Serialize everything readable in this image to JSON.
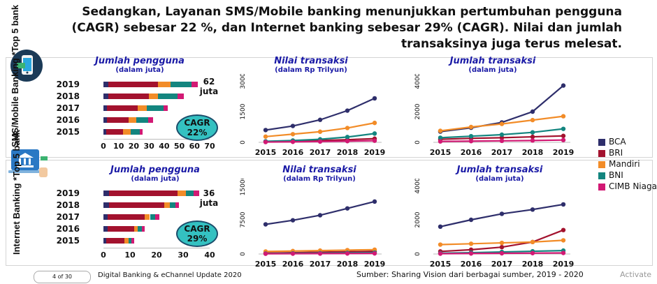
{
  "headline": "Sedangkan, Layanan SMS/Mobile banking menunjukkan pertumbuhan pengguna (CAGR) sebesar 22 %, dan Internet banking sebesar 29% (CAGR). Nilai dan jumlah transaksinya juga terus melesat.",
  "side_labels": {
    "mobile": "SMS/Mobile Banking *Top 5 bank",
    "internet": "Internet Banking *Top 5 bank"
  },
  "icons": {
    "mobile": "smartphone-icon",
    "internet": "bank-laptop-icon"
  },
  "colors": {
    "BCA": "#2e2e6b",
    "BRI": "#a3122e",
    "Mandiri": "#f28c28",
    "BNI": "#13857f",
    "CIMB Niaga": "#d21974"
  },
  "legend": [
    "BCA",
    "BRI",
    "Mandiri",
    "BNI",
    "CIMB Niaga"
  ],
  "footer": {
    "page": "4 of 30",
    "title": "Digital Banking & eChannel Update 2020",
    "source": "Sumber: Sharing Vision dari berbagai sumber, 2019 - 2020",
    "watermark": "Activate"
  },
  "chart_data": [
    {
      "id": "mobile-users",
      "type": "bar",
      "orientation": "horizontal",
      "stacked": true,
      "title": "Jumlah pengguna",
      "subtitle": "(dalam juta)",
      "categories": [
        "2019",
        "2018",
        "2017",
        "2016",
        "2015"
      ],
      "series": [
        {
          "name": "BCA",
          "values": [
            3,
            3,
            2.5,
            2.5,
            2
          ]
        },
        {
          "name": "BRI",
          "values": [
            33,
            27,
            20,
            14,
            11
          ]
        },
        {
          "name": "Mandiri",
          "values": [
            8,
            6,
            6,
            5,
            5
          ]
        },
        {
          "name": "BNI",
          "values": [
            14,
            13,
            11,
            8,
            6
          ]
        },
        {
          "name": "CIMB Niaga",
          "values": [
            4,
            4,
            3,
            3,
            2
          ]
        }
      ],
      "xticks": [
        "0",
        "10",
        "20",
        "30",
        "40",
        "50",
        "60",
        "70"
      ],
      "xlim": [
        0,
        70
      ],
      "total_label": "62 juta",
      "cagr_label": "CAGR",
      "cagr_value": "22%"
    },
    {
      "id": "mobile-value",
      "type": "line",
      "title": "Nilai transaksi",
      "subtitle": "(dalam Rp Trilyun)",
      "x": [
        "2015",
        "2016",
        "2017",
        "2018",
        "2019"
      ],
      "yticks": [
        "0",
        "1500",
        "3000"
      ],
      "ylim": [
        0,
        3000
      ],
      "series": [
        {
          "name": "BCA",
          "values": [
            600,
            800,
            1100,
            1550,
            2150
          ]
        },
        {
          "name": "BRI",
          "values": [
            40,
            60,
            90,
            130,
            180
          ]
        },
        {
          "name": "Mandiri",
          "values": [
            280,
            400,
            520,
            700,
            950
          ]
        },
        {
          "name": "BNI",
          "values": [
            50,
            90,
            150,
            260,
            430
          ]
        },
        {
          "name": "CIMB Niaga",
          "values": [
            15,
            25,
            40,
            60,
            80
          ]
        }
      ]
    },
    {
      "id": "mobile-volume",
      "type": "line",
      "title": "Jumlah transaksi",
      "subtitle": "(dalam juta)",
      "x": [
        "2015",
        "2016",
        "2017",
        "2018",
        "2019"
      ],
      "yticks": [
        "0",
        "2000",
        "4000"
      ],
      "ylim": [
        0,
        4000
      ],
      "series": [
        {
          "name": "BCA",
          "values": [
            700,
            950,
            1300,
            2000,
            3700
          ]
        },
        {
          "name": "BRI",
          "values": [
            200,
            260,
            300,
            360,
            420
          ]
        },
        {
          "name": "Mandiri",
          "values": [
            750,
            1000,
            1200,
            1450,
            1700
          ]
        },
        {
          "name": "BNI",
          "values": [
            300,
            400,
            500,
            650,
            880
          ]
        },
        {
          "name": "CIMB Niaga",
          "values": [
            60,
            80,
            100,
            120,
            150
          ]
        }
      ]
    },
    {
      "id": "internet-users",
      "type": "bar",
      "orientation": "horizontal",
      "stacked": true,
      "title": "Jumlah pengguna",
      "subtitle": "(dalam juta)",
      "categories": [
        "2019",
        "2018",
        "2017",
        "2016",
        "2015"
      ],
      "series": [
        {
          "name": "BCA",
          "values": [
            2,
            2,
            1.5,
            1.5,
            1
          ]
        },
        {
          "name": "BRI",
          "values": [
            26,
            21,
            14,
            10,
            7
          ]
        },
        {
          "name": "Mandiri",
          "values": [
            3,
            2,
            2,
            1.5,
            1.5
          ]
        },
        {
          "name": "BNI",
          "values": [
            3,
            2,
            2,
            1.5,
            1
          ]
        },
        {
          "name": "CIMB Niaga",
          "values": [
            2,
            1.5,
            1.5,
            1,
            1
          ]
        }
      ],
      "xticks": [
        "0",
        "10",
        "20",
        "30",
        "40"
      ],
      "xlim": [
        0,
        40
      ],
      "total_label": "36 juta",
      "cagr_label": "CAGR",
      "cagr_value": "29%"
    },
    {
      "id": "internet-value",
      "type": "line",
      "title": "Nilai transaksi",
      "subtitle": "(dalam Rp Trilyun)",
      "x": [
        "2015",
        "2016",
        "2017",
        "2018",
        "2019"
      ],
      "yticks": [
        "0",
        "7500",
        "15000"
      ],
      "ylim": [
        0,
        15000
      ],
      "series": [
        {
          "name": "BCA",
          "values": [
            6500,
            7400,
            8500,
            10000,
            11500
          ]
        },
        {
          "name": "BRI",
          "values": [
            200,
            300,
            400,
            500,
            600
          ]
        },
        {
          "name": "Mandiri",
          "values": [
            550,
            650,
            750,
            850,
            950
          ]
        },
        {
          "name": "BNI",
          "values": [
            100,
            150,
            200,
            250,
            300
          ]
        },
        {
          "name": "CIMB Niaga",
          "values": [
            50,
            70,
            90,
            110,
            130
          ]
        }
      ]
    },
    {
      "id": "internet-volume",
      "type": "line",
      "title": "Jumlah transaksi",
      "subtitle": "(dalam juta)",
      "x": [
        "2015",
        "2016",
        "2017",
        "2018",
        "2019"
      ],
      "yticks": [
        "0",
        "2000",
        "4000"
      ],
      "ylim": [
        0,
        4000
      ],
      "series": [
        {
          "name": "BCA",
          "values": [
            1600,
            2000,
            2350,
            2600,
            2900
          ]
        },
        {
          "name": "BRI",
          "values": [
            150,
            250,
            400,
            700,
            1400
          ]
        },
        {
          "name": "Mandiri",
          "values": [
            550,
            600,
            650,
            700,
            800
          ]
        },
        {
          "name": "BNI",
          "values": [
            50,
            80,
            120,
            160,
            200
          ]
        },
        {
          "name": "CIMB Niaga",
          "values": [
            20,
            30,
            40,
            50,
            60
          ]
        }
      ]
    }
  ]
}
